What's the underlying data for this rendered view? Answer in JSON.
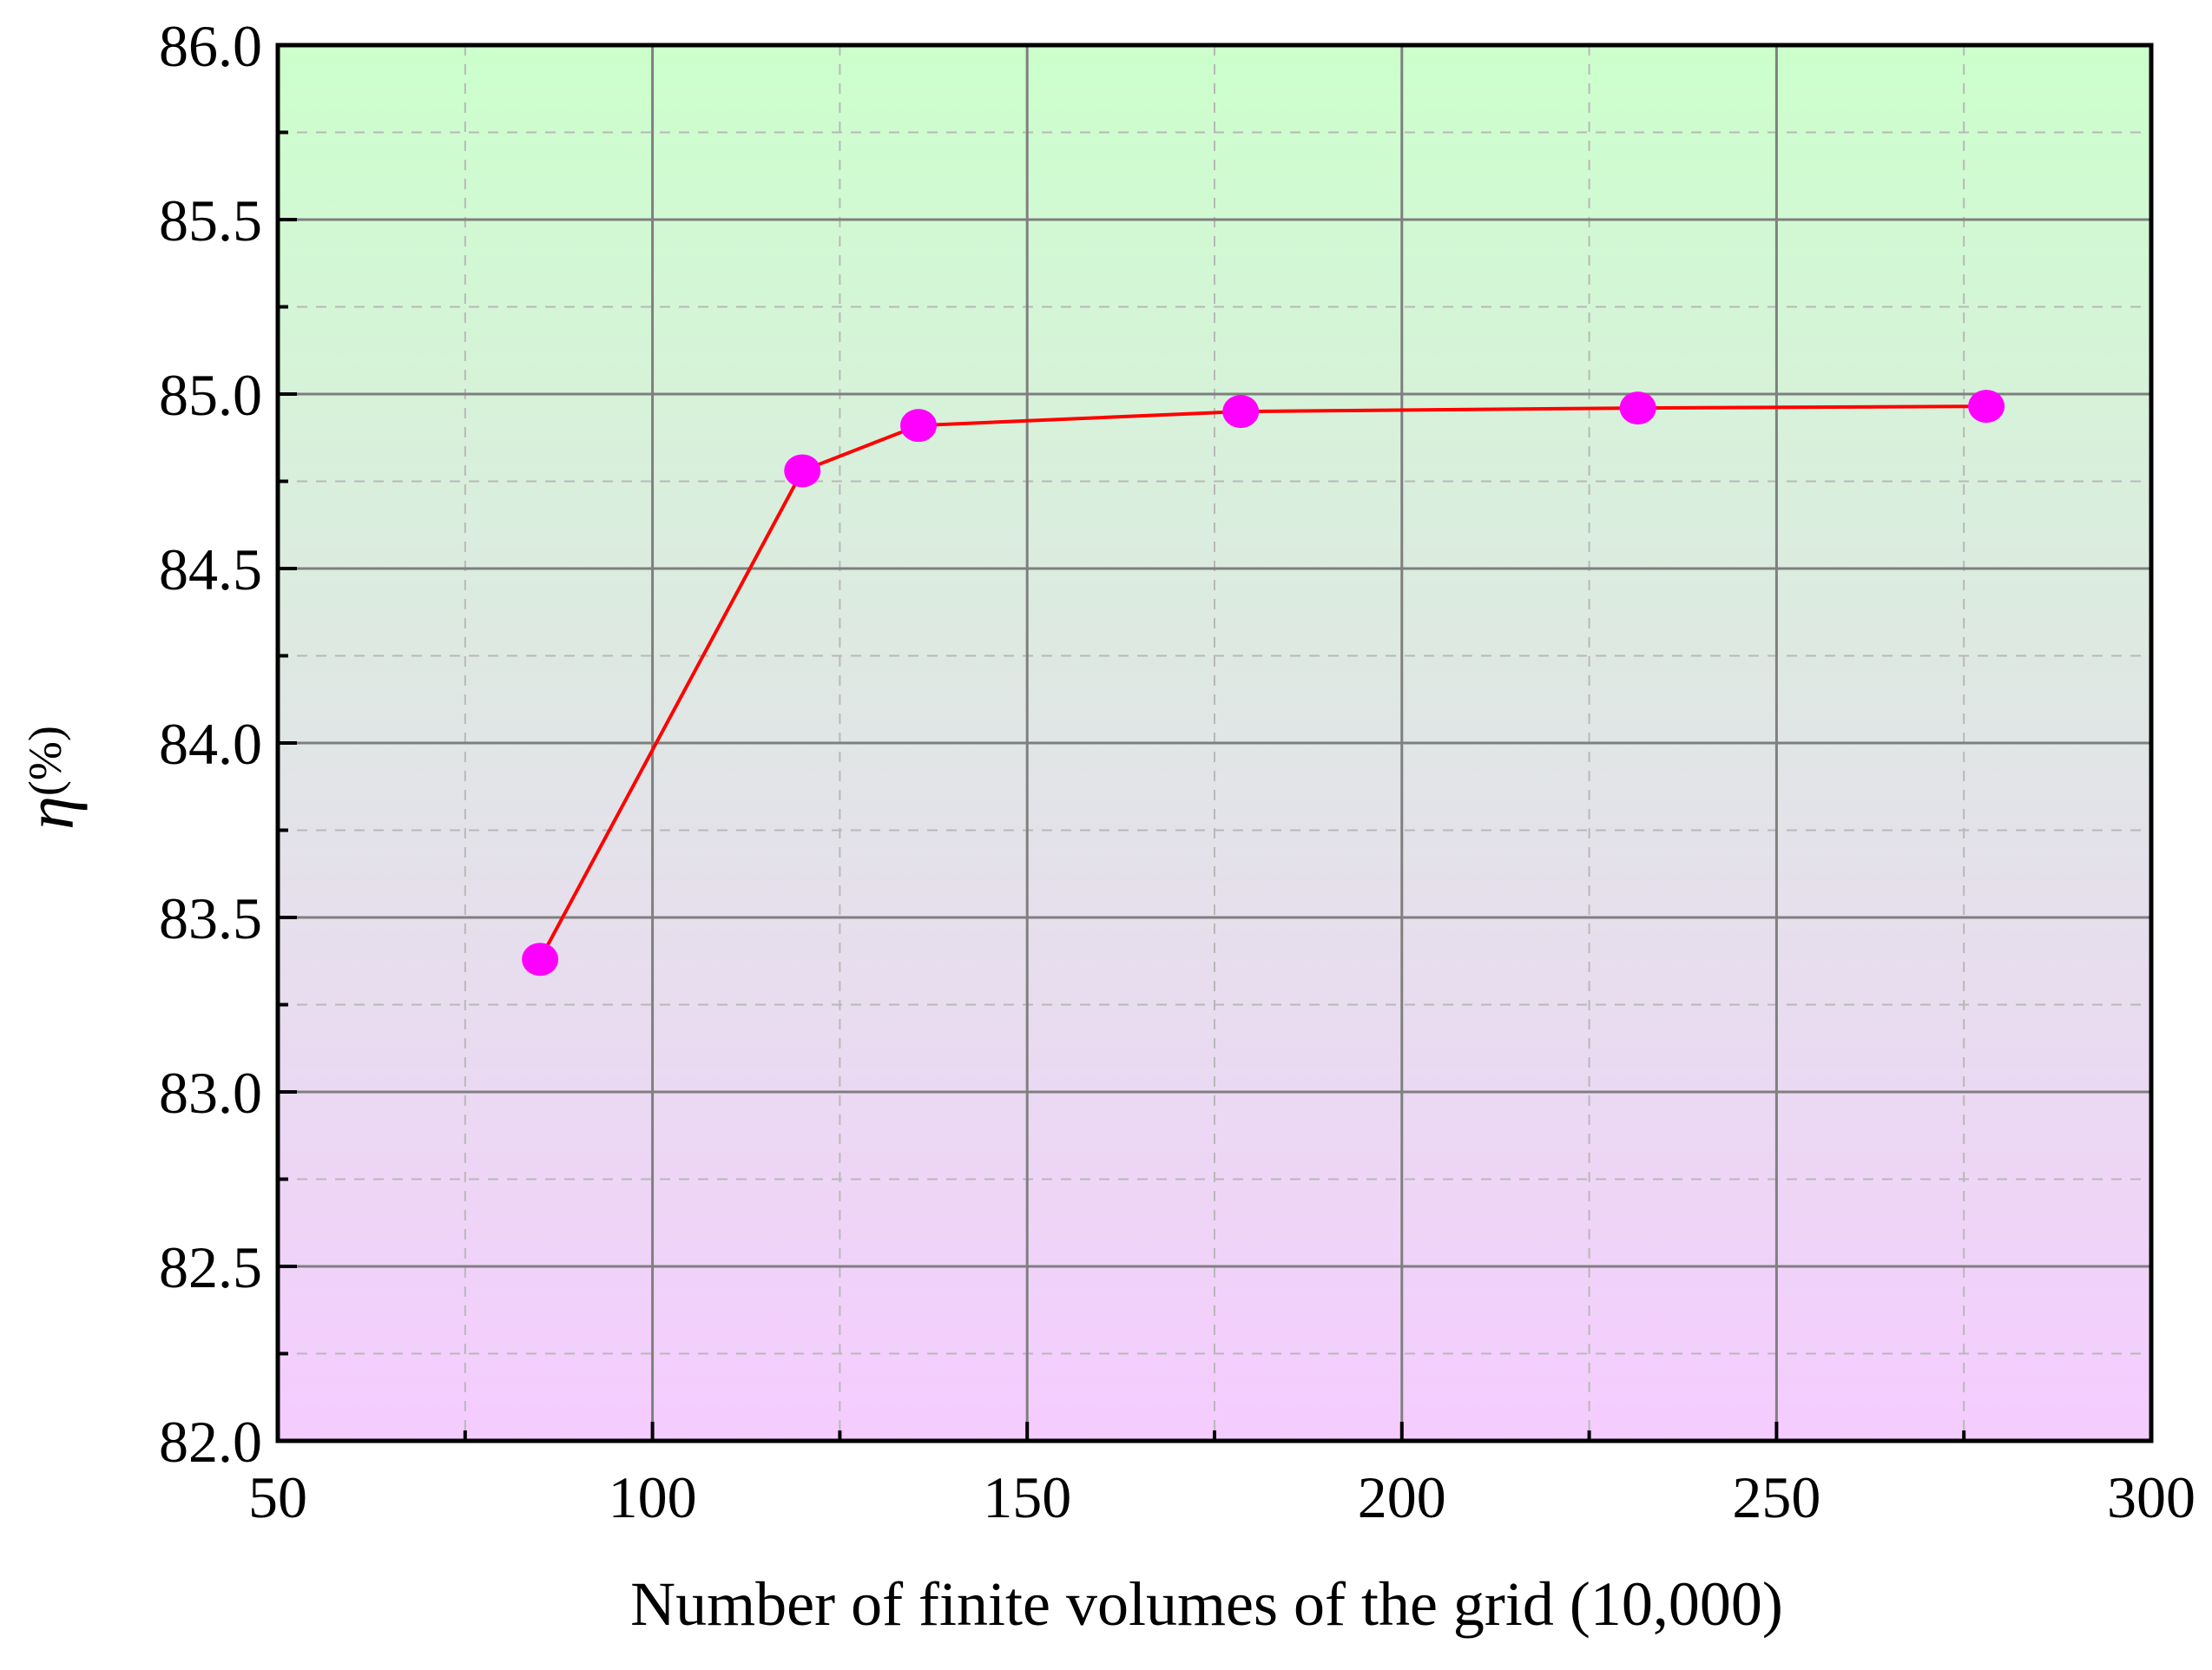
{
  "chart_data": {
    "type": "line",
    "title": "",
    "xlabel": "Number of finite volumes of the grid (10,000)",
    "ylabel_symbol": "η",
    "ylabel_unit": "(%)",
    "xlim": [
      50,
      300
    ],
    "ylim": [
      82.0,
      86.0
    ],
    "x_major_ticks": [
      50,
      100,
      150,
      200,
      250,
      300
    ],
    "x_tick_labels": [
      "50",
      "100",
      "150",
      "200",
      "250",
      "300"
    ],
    "x_minor_ticks": [
      75,
      125,
      175,
      225,
      275
    ],
    "y_major_ticks": [
      82.0,
      82.5,
      83.0,
      83.5,
      84.0,
      84.5,
      85.0,
      85.5,
      86.0
    ],
    "y_tick_labels": [
      "82.0",
      "82.5",
      "83.0",
      "83.5",
      "84.0",
      "84.5",
      "85.0",
      "85.5",
      "86.0"
    ],
    "y_minor_ticks": [
      82.25,
      82.75,
      83.25,
      83.75,
      84.25,
      84.75,
      85.25,
      85.75
    ],
    "grid": true,
    "legend": "none",
    "series": [
      {
        "x": [
          85,
          120,
          135.5,
          178.5,
          231.5,
          278
        ],
        "values": [
          83.38,
          84.78,
          84.91,
          84.95,
          84.96,
          84.965
        ],
        "line_color": "#ff0000",
        "marker_color": "#ff00ff"
      }
    ],
    "background_gradient": {
      "top": "#ccffcc",
      "bottom": "#f5ccff"
    }
  }
}
